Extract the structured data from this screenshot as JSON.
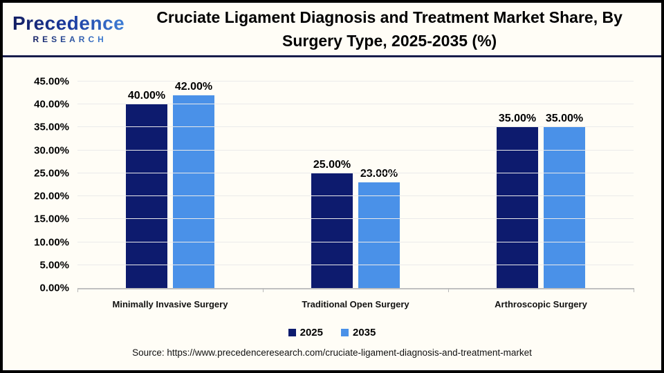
{
  "header": {
    "logo": {
      "brand_name": "Precedence",
      "brand_subtitle": "RESEARCH"
    },
    "title_lines": [
      "Cruciate Ligament Diagnosis and Treatment Market Share, By",
      "Surgery Type, 2025-2035 (%)"
    ]
  },
  "chart_data": {
    "type": "bar",
    "title": "Cruciate Ligament Diagnosis and Treatment Market Share, By Surgery Type, 2025-2035 (%)",
    "categories": [
      "Minimally Invasive Surgery",
      "Traditional Open Surgery",
      "Arthroscopic Surgery"
    ],
    "series": [
      {
        "name": "2025",
        "color": "#0d1b6e",
        "values": [
          40,
          25,
          35
        ],
        "labels": [
          "40.00%",
          "25.00%",
          "35.00%"
        ]
      },
      {
        "name": "2035",
        "color": "#4a91e8",
        "values": [
          42,
          23,
          35
        ],
        "labels": [
          "42.00%",
          "23.00%",
          "35.00%"
        ]
      }
    ],
    "y_axis": {
      "min": 0,
      "max": 45,
      "step": 5,
      "tick_labels": [
        "0.00%",
        "5.00%",
        "10.00%",
        "15.00%",
        "20.00%",
        "25.00%",
        "30.00%",
        "35.00%",
        "40.00%",
        "45.00%"
      ]
    },
    "legend": {
      "position": "bottom",
      "entries": [
        "2025",
        "2035"
      ]
    },
    "grid": "horizontal"
  },
  "footer": {
    "source": "Source: https://www.precedenceresearch.com/cruciate-ligament-diagnosis-and-treatment-market"
  },
  "colors": {
    "bar_2025": "#0d1b6e",
    "bar_2035": "#4a91e8",
    "logo_navy": "#141f63",
    "logo_blue": "#3f7fd6",
    "header_divider": "#171c4b",
    "gridline": "#eaeaea",
    "axis_line": "#c0c0c0",
    "background": "#fffdf6"
  }
}
